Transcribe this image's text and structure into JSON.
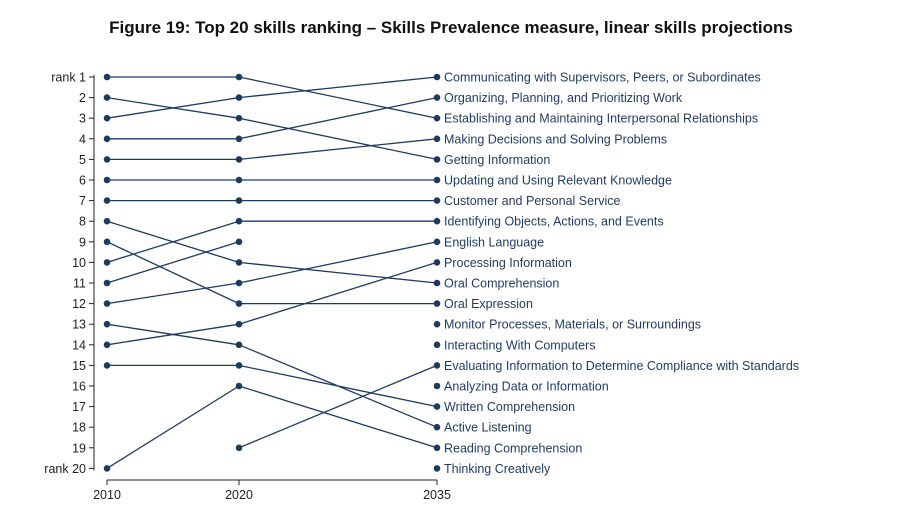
{
  "title": "Figure 19: Top 20 skills ranking – Skills Prevalence measure, linear skills projections",
  "colors": {
    "series": "#1f3a5f",
    "axis": "#222222"
  },
  "chart_data": {
    "type": "line",
    "chart_kind": "slope / bump chart",
    "x": [
      2010,
      2020,
      2035
    ],
    "x_tick_labels": [
      "2010",
      "2020",
      "2035"
    ],
    "y_tick_labels": [
      "rank 1",
      "2",
      "3",
      "4",
      "5",
      "6",
      "7",
      "8",
      "9",
      "10",
      "11",
      "12",
      "13",
      "14",
      "15",
      "16",
      "17",
      "18",
      "19",
      "rank 20"
    ],
    "ylim": [
      1,
      20
    ],
    "y_reversed": true,
    "grid": false,
    "legend": "none",
    "series": [
      {
        "name": "Communicating with Supervisors, Peers, or Subordinates",
        "ranks": [
          3,
          2,
          1
        ]
      },
      {
        "name": "Organizing, Planning, and Prioritizing Work",
        "ranks": [
          4,
          4,
          2
        ]
      },
      {
        "name": "Establishing and Maintaining Interpersonal Relationships",
        "ranks": [
          1,
          1,
          3
        ]
      },
      {
        "name": "Making Decisions and Solving Problems",
        "ranks": [
          5,
          5,
          4
        ]
      },
      {
        "name": "Getting Information",
        "ranks": [
          2,
          3,
          5
        ]
      },
      {
        "name": "Updating and Using Relevant Knowledge",
        "ranks": [
          6,
          6,
          6
        ]
      },
      {
        "name": "Customer and Personal Service",
        "ranks": [
          7,
          7,
          7
        ]
      },
      {
        "name": "Identifying Objects, Actions, and Events",
        "ranks": [
          10,
          8,
          8
        ]
      },
      {
        "name": "English Language",
        "ranks": [
          12,
          11,
          9
        ]
      },
      {
        "name": "Processing Information",
        "ranks": [
          14,
          13,
          10
        ]
      },
      {
        "name": "Oral Comprehension",
        "ranks": [
          8,
          10,
          11
        ]
      },
      {
        "name": "Oral Expression",
        "ranks": [
          9,
          12,
          12
        ]
      },
      {
        "name": "Monitor Processes, Materials, or Surroundings",
        "ranks": [
          null,
          null,
          13
        ]
      },
      {
        "name": "Interacting With Computers",
        "ranks": [
          null,
          null,
          14
        ]
      },
      {
        "name": "Evaluating Information to Determine Compliance with Standards",
        "ranks": [
          null,
          19,
          15
        ]
      },
      {
        "name": "Analyzing Data or Information",
        "ranks": [
          null,
          null,
          16
        ]
      },
      {
        "name": "Written Comprehension",
        "ranks": [
          15,
          15,
          17
        ]
      },
      {
        "name": "Active Listening",
        "ranks": [
          13,
          14,
          18
        ]
      },
      {
        "name": "Reading Comprehension",
        "ranks": [
          20,
          16,
          19
        ]
      },
      {
        "name": "Thinking Creatively",
        "ranks": [
          null,
          null,
          20
        ]
      },
      {
        "name": "",
        "ranks": [
          11,
          9,
          null
        ]
      }
    ]
  }
}
